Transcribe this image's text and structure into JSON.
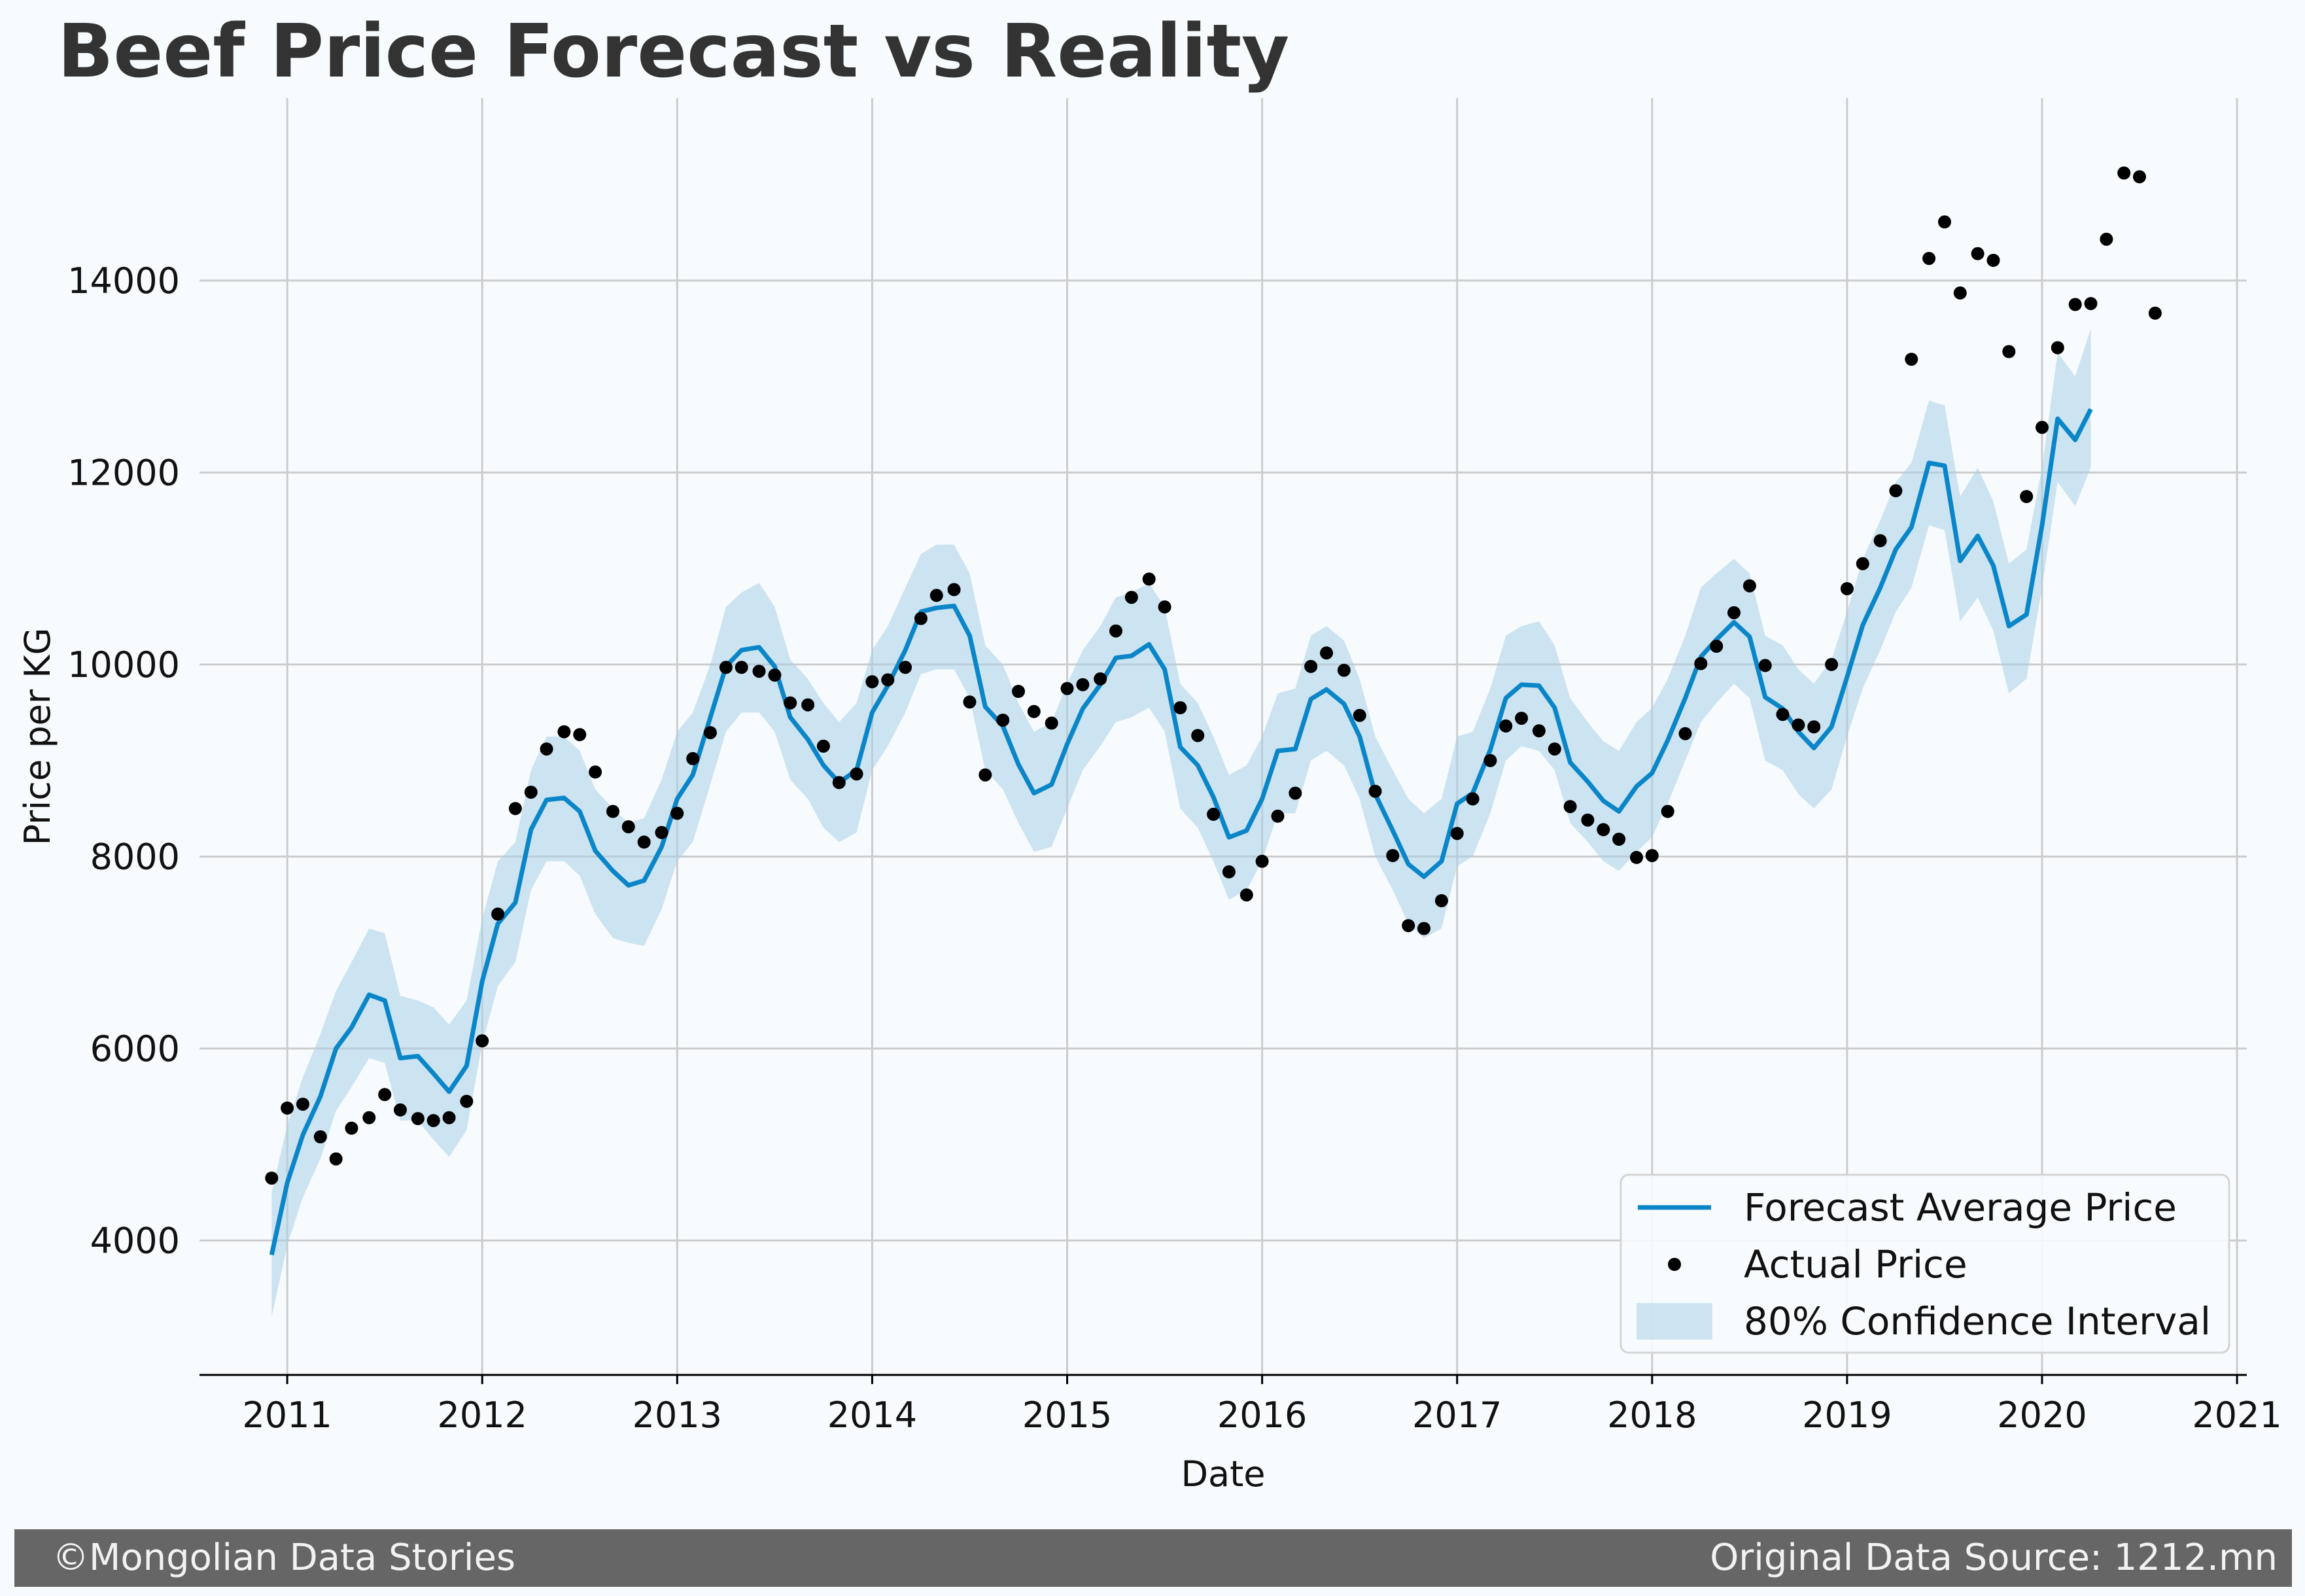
{
  "chart_data": {
    "type": "line",
    "title": "Beef Price Forecast vs Reality",
    "xlabel": "Date",
    "ylabel": "Price per KG",
    "xlim": [
      2010.55,
      2021.05
    ],
    "ylim": [
      2600,
      15900
    ],
    "x_ticks": [
      "2011",
      "2012",
      "2013",
      "2014",
      "2015",
      "2016",
      "2017",
      "2018",
      "2019",
      "2020",
      "2021"
    ],
    "y_ticks": [
      "4000",
      "6000",
      "8000",
      "10000",
      "12000",
      "14000"
    ],
    "grid": true,
    "legend_position": "bottom-right",
    "colors": {
      "forecast": "#0a86c8",
      "interval": "#a9cfe6",
      "actual": "#000000",
      "background": "#f7fbfe"
    },
    "forecast": {
      "name": "Forecast Average Price",
      "x": [
        2010.92,
        2011.0,
        2011.08,
        2011.17,
        2011.25,
        2011.33,
        2011.42,
        2011.5,
        2011.58,
        2011.67,
        2011.75,
        2011.83,
        2011.92,
        2012.0,
        2012.08,
        2012.17,
        2012.25,
        2012.33,
        2012.42,
        2012.5,
        2012.58,
        2012.67,
        2012.75,
        2012.83,
        2012.92,
        2013.0,
        2013.08,
        2013.17,
        2013.25,
        2013.33,
        2013.42,
        2013.5,
        2013.58,
        2013.67,
        2013.75,
        2013.83,
        2013.92,
        2014.0,
        2014.08,
        2014.17,
        2014.25,
        2014.33,
        2014.42,
        2014.5,
        2014.58,
        2014.67,
        2014.75,
        2014.83,
        2014.92,
        2015.0,
        2015.08,
        2015.17,
        2015.25,
        2015.33,
        2015.42,
        2015.5,
        2015.58,
        2015.67,
        2015.75,
        2015.83,
        2015.92,
        2016.0,
        2016.08,
        2016.17,
        2016.25,
        2016.33,
        2016.42,
        2016.5,
        2016.58,
        2016.67,
        2016.75,
        2016.83,
        2016.92,
        2017.0,
        2017.08,
        2017.17,
        2017.25,
        2017.33,
        2017.42,
        2017.5,
        2017.58,
        2017.67,
        2017.75,
        2017.83,
        2017.92,
        2018.0,
        2018.08,
        2018.17,
        2018.25,
        2018.33,
        2018.42,
        2018.5,
        2018.58,
        2018.67,
        2018.75,
        2018.83,
        2018.92,
        2019.0,
        2019.08,
        2019.17,
        2019.25,
        2019.33,
        2019.42,
        2019.5,
        2019.58,
        2019.67,
        2019.75,
        2019.83,
        2019.92,
        2020.0,
        2020.08,
        2020.17,
        2020.25
      ],
      "values": [
        3850,
        4600,
        5100,
        5500,
        6000,
        6220,
        6560,
        6500,
        5900,
        5920,
        5740,
        5550,
        5820,
        6700,
        7300,
        7520,
        8280,
        8590,
        8610,
        8470,
        8060,
        7850,
        7700,
        7750,
        8100,
        8600,
        8850,
        9450,
        9980,
        10150,
        10180,
        9980,
        9450,
        9220,
        8950,
        8770,
        8900,
        9500,
        9780,
        10150,
        10550,
        10590,
        10610,
        10300,
        9560,
        9360,
        8960,
        8660,
        8750,
        9170,
        9540,
        9790,
        10070,
        10090,
        10210,
        9950,
        9140,
        8950,
        8620,
        8200,
        8270,
        8600,
        9100,
        9120,
        9640,
        9740,
        9590,
        9250,
        8650,
        8270,
        7920,
        7790,
        7950,
        8550,
        8660,
        9110,
        9650,
        9790,
        9780,
        9550,
        8980,
        8780,
        8580,
        8470,
        8730,
        8870,
        9210,
        9650,
        10080,
        10260,
        10440,
        10290,
        9660,
        9540,
        9300,
        9130,
        9350,
        9870,
        10410,
        10800,
        11200,
        11430,
        12100,
        12070,
        11080,
        11340,
        11030,
        10400,
        10520,
        11450,
        12560,
        12340,
        12660
      ]
    },
    "interval": {
      "name": "80% Confidence Interval",
      "upper": [
        4500,
        5200,
        5700,
        6150,
        6600,
        6900,
        7250,
        7200,
        6550,
        6500,
        6430,
        6250,
        6500,
        7350,
        7950,
        8150,
        8900,
        9250,
        9250,
        9100,
        8700,
        8500,
        8350,
        8400,
        8800,
        9300,
        9500,
        10000,
        10600,
        10750,
        10850,
        10600,
        10050,
        9850,
        9600,
        9400,
        9600,
        10150,
        10400,
        10800,
        11150,
        11250,
        11250,
        10950,
        10200,
        10000,
        9600,
        9300,
        9400,
        9800,
        10150,
        10400,
        10700,
        10750,
        10850,
        10600,
        9800,
        9600,
        9250,
        8850,
        8950,
        9250,
        9700,
        9750,
        10300,
        10400,
        10250,
        9850,
        9250,
        8900,
        8600,
        8450,
        8600,
        9250,
        9300,
        9750,
        10300,
        10400,
        10450,
        10200,
        9650,
        9400,
        9200,
        9100,
        9400,
        9550,
        9850,
        10300,
        10800,
        10950,
        11100,
        10950,
        10300,
        10200,
        9950,
        9800,
        10050,
        10550,
        11100,
        11500,
        11900,
        12100,
        12750,
        12700,
        11750,
        12050,
        11700,
        11050,
        11200,
        12050,
        13250,
        13000,
        13500
      ],
      "lower": [
        3200,
        3950,
        4450,
        4850,
        5350,
        5600,
        5900,
        5850,
        5250,
        5250,
        5050,
        4870,
        5150,
        6050,
        6650,
        6900,
        7650,
        7950,
        7950,
        7800,
        7400,
        7150,
        7100,
        7070,
        7450,
        7950,
        8150,
        8750,
        9300,
        9500,
        9500,
        9300,
        8800,
        8600,
        8300,
        8150,
        8250,
        8900,
        9150,
        9500,
        9900,
        9950,
        9950,
        9650,
        8900,
        8700,
        8350,
        8050,
        8100,
        8500,
        8900,
        9150,
        9400,
        9450,
        9550,
        9300,
        8500,
        8300,
        7950,
        7550,
        7650,
        7950,
        8450,
        8450,
        9000,
        9100,
        8950,
        8600,
        8000,
        7650,
        7300,
        7150,
        7250,
        7900,
        8000,
        8450,
        9000,
        9150,
        9100,
        8900,
        8350,
        8150,
        7950,
        7850,
        8050,
        8200,
        8550,
        9000,
        9400,
        9600,
        9800,
        9650,
        9000,
        8900,
        8650,
        8500,
        8700,
        9250,
        9750,
        10150,
        10550,
        10800,
        11450,
        11400,
        10450,
        10700,
        10350,
        9700,
        9850,
        10800,
        11900,
        11650,
        12050
      ]
    },
    "actual": {
      "name": "Actual Price",
      "x": [
        2010.92,
        2011.0,
        2011.08,
        2011.17,
        2011.25,
        2011.33,
        2011.42,
        2011.5,
        2011.58,
        2011.67,
        2011.75,
        2011.83,
        2011.92,
        2012.0,
        2012.08,
        2012.17,
        2012.25,
        2012.33,
        2012.42,
        2012.5,
        2012.58,
        2012.67,
        2012.75,
        2012.83,
        2012.92,
        2013.0,
        2013.08,
        2013.17,
        2013.25,
        2013.33,
        2013.42,
        2013.5,
        2013.58,
        2013.67,
        2013.75,
        2013.83,
        2013.92,
        2014.0,
        2014.08,
        2014.17,
        2014.25,
        2014.33,
        2014.42,
        2014.5,
        2014.58,
        2014.67,
        2014.75,
        2014.83,
        2014.92,
        2015.0,
        2015.08,
        2015.17,
        2015.25,
        2015.33,
        2015.42,
        2015.5,
        2015.58,
        2015.67,
        2015.75,
        2015.83,
        2015.92,
        2016.0,
        2016.08,
        2016.17,
        2016.25,
        2016.33,
        2016.42,
        2016.5,
        2016.58,
        2016.67,
        2016.75,
        2016.83,
        2016.92,
        2017.0,
        2017.08,
        2017.17,
        2017.25,
        2017.33,
        2017.42,
        2017.5,
        2017.58,
        2017.67,
        2017.75,
        2017.83,
        2017.92,
        2018.0,
        2018.08,
        2018.17,
        2018.25,
        2018.33,
        2018.42,
        2018.5,
        2018.58,
        2018.67,
        2018.75,
        2018.83,
        2018.92,
        2019.0,
        2019.08,
        2019.17,
        2019.25,
        2019.33,
        2019.42,
        2019.5,
        2019.58,
        2019.67,
        2019.75,
        2019.83,
        2019.92,
        2020.0,
        2020.08,
        2020.17,
        2020.25,
        2020.33,
        2020.42,
        2020.5,
        2020.58
      ],
      "values": [
        4650,
        5380,
        5420,
        5080,
        4850,
        5170,
        5280,
        5520,
        5360,
        5270,
        5250,
        5280,
        5450,
        6080,
        7400,
        8500,
        8670,
        9120,
        9300,
        9270,
        8880,
        8470,
        8310,
        8150,
        8250,
        8450,
        9020,
        9290,
        9970,
        9970,
        9930,
        9890,
        9600,
        9580,
        9150,
        8770,
        8860,
        9820,
        9840,
        9970,
        10480,
        10720,
        10780,
        9610,
        8850,
        9420,
        9720,
        9510,
        9390,
        9750,
        9790,
        9850,
        10350,
        10700,
        10890,
        10600,
        9550,
        9260,
        8440,
        7840,
        7600,
        7950,
        8420,
        8660,
        9980,
        10120,
        9940,
        9470,
        8680,
        8010,
        7280,
        7250,
        7540,
        8240,
        8600,
        9000,
        9360,
        9440,
        9310,
        9120,
        8520,
        8380,
        8280,
        8180,
        7990,
        8010,
        8470,
        9280,
        10010,
        10190,
        10540,
        10820,
        9990,
        9480,
        9370,
        9350,
        10000,
        10790,
        11050,
        11290,
        11810,
        13180,
        14230,
        14610,
        13870,
        14280,
        14210,
        13260,
        11750,
        12470,
        13300,
        13750,
        13760,
        14430,
        15120,
        15080,
        13660
      ]
    }
  },
  "footer": {
    "left_text": "©Mongolian Data Stories",
    "right_text": "Original Data Source: 1212.mn"
  }
}
